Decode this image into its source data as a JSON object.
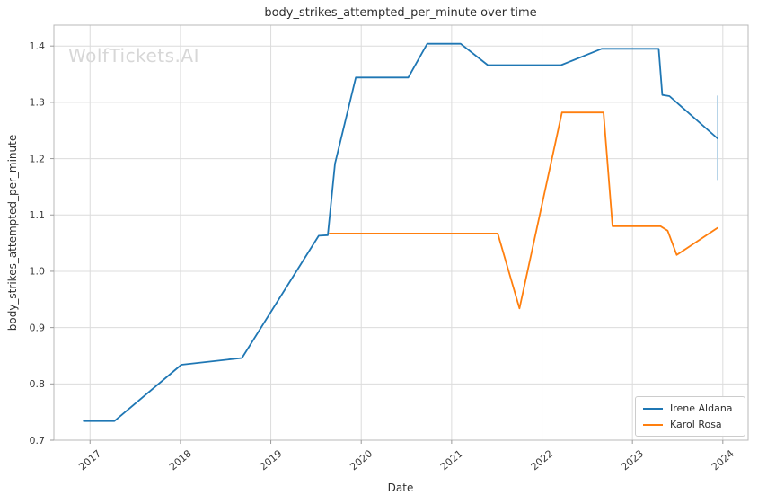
{
  "watermark": "WolfTickets.AI",
  "chart_data": {
    "type": "line",
    "title": "body_strikes_attempted_per_minute over time",
    "xlabel": "Date",
    "ylabel": "body_strikes_attempted_per_minute",
    "x_tick_labels": [
      "2017",
      "2018",
      "2019",
      "2020",
      "2021",
      "2022",
      "2023",
      "2024"
    ],
    "y_tick_labels": [
      "0.7",
      "0.8",
      "0.9",
      "1.0",
      "1.1",
      "1.2",
      "1.3",
      "1.4"
    ],
    "xlim": [
      2016.6,
      2024.28
    ],
    "ylim": [
      0.7,
      1.437
    ],
    "grid": true,
    "legend_position": "lower right",
    "series": [
      {
        "name": "Irene Aldana",
        "color": "#1f77b4",
        "points": [
          [
            2016.93,
            0.734
          ],
          [
            2017.27,
            0.734
          ],
          [
            2018.01,
            0.834
          ],
          [
            2018.68,
            0.846
          ],
          [
            2019.53,
            1.063
          ],
          [
            2019.63,
            1.064
          ],
          [
            2019.71,
            1.191
          ],
          [
            2019.94,
            1.344
          ],
          [
            2020.52,
            1.344
          ],
          [
            2020.73,
            1.404
          ],
          [
            2021.1,
            1.404
          ],
          [
            2021.4,
            1.366
          ],
          [
            2022.21,
            1.366
          ],
          [
            2022.66,
            1.395
          ],
          [
            2023.29,
            1.395
          ],
          [
            2023.33,
            1.313
          ],
          [
            2023.41,
            1.311
          ],
          [
            2023.94,
            1.236
          ]
        ]
      },
      {
        "name": "Karol Rosa",
        "color": "#ff7f0e",
        "points": [
          [
            2019.65,
            1.067
          ],
          [
            2021.51,
            1.067
          ],
          [
            2021.75,
            0.934
          ],
          [
            2022.22,
            1.282
          ],
          [
            2022.68,
            1.282
          ],
          [
            2022.78,
            1.08
          ],
          [
            2023.31,
            1.08
          ],
          [
            2023.39,
            1.072
          ],
          [
            2023.49,
            1.029
          ],
          [
            2023.94,
            1.077
          ]
        ]
      }
    ],
    "error_bar": {
      "series": "Irene Aldana",
      "x": 2023.94,
      "y_low": 1.162,
      "y_high": 1.312,
      "color": "#b5d3e8"
    }
  }
}
